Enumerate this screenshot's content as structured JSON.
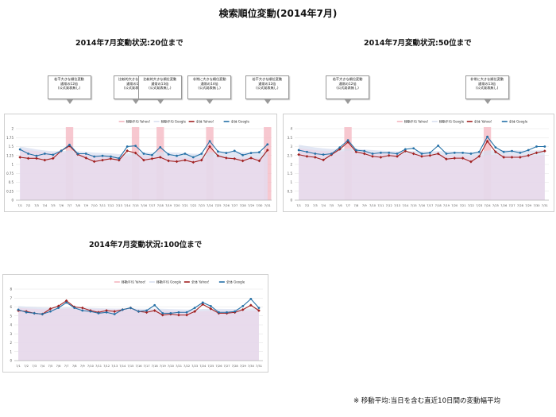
{
  "title": "検索順位変動(2014年7月)",
  "footnote": "※ 移動平均:当日を含む直近10日間の変動幅平均",
  "colors": {
    "google": "#2470a6",
    "yahoo": "#a02020",
    "ma_google_fill": "#d8dff0",
    "ma_yahoo_fill": "#ead7ea",
    "highlight": "#f4b6c0"
  },
  "legend_labels": [
    "移動平均 Yahoo!",
    "移動平均 Google",
    "全体 Yahoo!",
    "全体 Google"
  ],
  "chart_data": [
    {
      "type": "line",
      "title": "2014年7月変動状況:20位まで",
      "categories": [
        "7/1",
        "7/2",
        "7/3",
        "7/4",
        "7/5",
        "7/6",
        "7/7",
        "7/8",
        "7/9",
        "7/10",
        "7/11",
        "7/12",
        "7/13",
        "7/14",
        "7/15",
        "7/16",
        "7/17",
        "7/18",
        "7/19",
        "7/20",
        "7/21",
        "7/22",
        "7/23",
        "7/24",
        "7/25",
        "7/26",
        "7/27",
        "7/28",
        "7/29",
        "7/30",
        "7/31"
      ],
      "ylim": [
        0,
        2
      ],
      "yticks": [
        "0",
        "0.25",
        "0.5",
        "0.75",
        "1",
        "1.25",
        "1.5",
        "1.75",
        "2"
      ],
      "highlight_dates": [
        "7/7",
        "7/15",
        "7/18",
        "7/24",
        "7/31"
      ],
      "series": [
        {
          "name": "全体 Yahoo!",
          "values": [
            1.2,
            1.17,
            1.17,
            1.12,
            1.17,
            1.38,
            1.52,
            1.28,
            1.18,
            1.08,
            1.12,
            1.16,
            1.12,
            1.38,
            1.32,
            1.12,
            1.16,
            1.2,
            1.1,
            1.08,
            1.12,
            1.06,
            1.12,
            1.5,
            1.24,
            1.18,
            1.16,
            1.1,
            1.18,
            1.1,
            1.4
          ]
        },
        {
          "name": "全体 Google",
          "values": [
            1.42,
            1.3,
            1.24,
            1.3,
            1.27,
            1.38,
            1.55,
            1.3,
            1.3,
            1.22,
            1.24,
            1.22,
            1.17,
            1.5,
            1.52,
            1.3,
            1.26,
            1.48,
            1.28,
            1.24,
            1.3,
            1.2,
            1.3,
            1.65,
            1.36,
            1.32,
            1.38,
            1.26,
            1.32,
            1.34,
            1.56
          ]
        },
        {
          "name": "移動平均 Yahoo!",
          "values": [
            1.42,
            1.4,
            1.37,
            1.34,
            1.32,
            1.33,
            1.35,
            1.33,
            1.29,
            1.26,
            1.24,
            1.22,
            1.21,
            1.23,
            1.24,
            1.24,
            1.23,
            1.23,
            1.22,
            1.2,
            1.19,
            1.18,
            1.17,
            1.2,
            1.21,
            1.2,
            1.2,
            1.19,
            1.19,
            1.19,
            1.21
          ]
        },
        {
          "name": "移動平均 Google",
          "values": [
            1.5,
            1.46,
            1.42,
            1.39,
            1.37,
            1.37,
            1.39,
            1.37,
            1.35,
            1.33,
            1.32,
            1.31,
            1.29,
            1.31,
            1.33,
            1.34,
            1.33,
            1.35,
            1.34,
            1.33,
            1.32,
            1.3,
            1.3,
            1.34,
            1.35,
            1.35,
            1.36,
            1.34,
            1.34,
            1.34,
            1.36
          ]
        }
      ],
      "callouts": [
        {
          "date": "7/7",
          "lines": [
            "若干大きな順位変動",
            "通常の12倍",
            "(公式発表無し)"
          ]
        },
        {
          "date": "7/15",
          "lines": [
            "比較的大きな順位変動",
            "通常の13倍",
            "(公式発表無し)"
          ]
        },
        {
          "date": "7/18",
          "lines": [
            "比較的大きな順位変動",
            "通常の13倍",
            "(公式発表無し)"
          ]
        },
        {
          "date": "7/24",
          "lines": [
            "非常に大きな順位変動",
            "通常の14倍",
            "(公式発表無し)"
          ]
        },
        {
          "date": "7/31",
          "lines": [
            "若干大きな順位変動",
            "通常の12倍",
            "(公式発表無し)"
          ]
        }
      ]
    },
    {
      "type": "line",
      "title": "2014年7月変動状況:50位まで",
      "categories": [
        "7/1",
        "7/2",
        "7/3",
        "7/4",
        "7/5",
        "7/6",
        "7/7",
        "7/8",
        "7/9",
        "7/10",
        "7/11",
        "7/12",
        "7/13",
        "7/14",
        "7/15",
        "7/16",
        "7/17",
        "7/18",
        "7/19",
        "7/20",
        "7/21",
        "7/22",
        "7/23",
        "7/24",
        "7/25",
        "7/26",
        "7/27",
        "7/28",
        "7/29",
        "7/30",
        "7/31"
      ],
      "ylim": [
        0,
        4
      ],
      "yticks": [
        "0",
        "0.5",
        "1",
        "1.5",
        "2",
        "2.5",
        "3",
        "3.5",
        "4"
      ],
      "highlight_dates": [
        "7/7",
        "7/24"
      ],
      "series": [
        {
          "name": "全体 Yahoo!",
          "values": [
            2.55,
            2.45,
            2.4,
            2.25,
            2.55,
            2.85,
            3.25,
            2.7,
            2.6,
            2.45,
            2.4,
            2.5,
            2.45,
            2.75,
            2.6,
            2.45,
            2.5,
            2.6,
            2.3,
            2.35,
            2.35,
            2.15,
            2.45,
            3.3,
            2.7,
            2.4,
            2.4,
            2.4,
            2.5,
            2.65,
            2.75
          ]
        },
        {
          "name": "全体 Google",
          "values": [
            2.8,
            2.7,
            2.6,
            2.55,
            2.6,
            2.95,
            3.35,
            2.8,
            2.75,
            2.6,
            2.65,
            2.65,
            2.6,
            2.85,
            2.9,
            2.6,
            2.65,
            3.05,
            2.6,
            2.65,
            2.65,
            2.6,
            2.7,
            3.55,
            2.95,
            2.7,
            2.75,
            2.65,
            2.8,
            3.0,
            3.0
          ]
        },
        {
          "name": "移動平均 Yahoo!",
          "values": [
            2.9,
            2.85,
            2.8,
            2.75,
            2.72,
            2.72,
            2.76,
            2.74,
            2.7,
            2.66,
            2.62,
            2.6,
            2.58,
            2.6,
            2.6,
            2.57,
            2.55,
            2.55,
            2.52,
            2.5,
            2.48,
            2.46,
            2.46,
            2.52,
            2.54,
            2.53,
            2.52,
            2.5,
            2.5,
            2.5,
            2.52
          ]
        },
        {
          "name": "移動平均 Google",
          "values": [
            3.1,
            3.02,
            2.95,
            2.9,
            2.86,
            2.86,
            2.9,
            2.88,
            2.84,
            2.8,
            2.77,
            2.75,
            2.73,
            2.74,
            2.75,
            2.73,
            2.72,
            2.75,
            2.73,
            2.72,
            2.7,
            2.69,
            2.69,
            2.78,
            2.8,
            2.79,
            2.8,
            2.78,
            2.78,
            2.79,
            2.82
          ]
        }
      ],
      "callouts": [
        {
          "date": "7/7",
          "lines": [
            "若干大きな順位変動",
            "通常の12倍",
            "(公式発表無し)"
          ]
        },
        {
          "date": "7/24",
          "lines": [
            "非常に大きな順位変動",
            "通常の13倍",
            "(公式発表無し)"
          ]
        }
      ]
    },
    {
      "type": "line",
      "title": "2014年7月変動状況:100位まで",
      "categories": [
        "7/1",
        "7/2",
        "7/3",
        "7/4",
        "7/5",
        "7/6",
        "7/7",
        "7/8",
        "7/9",
        "7/10",
        "7/11",
        "7/12",
        "7/13",
        "7/14",
        "7/15",
        "7/16",
        "7/17",
        "7/18",
        "7/19",
        "7/20",
        "7/21",
        "7/22",
        "7/23",
        "7/24",
        "7/25",
        "7/26",
        "7/27",
        "7/28",
        "7/29",
        "7/30",
        "7/31"
      ],
      "ylim": [
        0,
        8
      ],
      "yticks": [
        "0",
        "1",
        "2",
        "3",
        "4",
        "5",
        "6",
        "7",
        "8"
      ],
      "highlight_dates": [],
      "series": [
        {
          "name": "全体 Yahoo!",
          "values": [
            5.6,
            5.5,
            5.3,
            5.2,
            5.8,
            6.1,
            6.7,
            6.0,
            5.9,
            5.6,
            5.4,
            5.6,
            5.5,
            5.7,
            5.9,
            5.5,
            5.4,
            5.6,
            5.1,
            5.2,
            5.1,
            5.1,
            5.5,
            6.3,
            5.8,
            5.3,
            5.3,
            5.4,
            5.7,
            6.2,
            5.6
          ]
        },
        {
          "name": "全体 Google",
          "values": [
            5.7,
            5.4,
            5.3,
            5.2,
            5.5,
            5.9,
            6.5,
            5.9,
            5.6,
            5.5,
            5.3,
            5.4,
            5.2,
            5.7,
            5.9,
            5.5,
            5.6,
            6.2,
            5.3,
            5.3,
            5.4,
            5.4,
            5.9,
            6.5,
            6.1,
            5.4,
            5.4,
            5.5,
            6.1,
            6.9,
            5.9
          ]
        },
        {
          "name": "移動平均 Yahoo!",
          "values": [
            5.9,
            5.85,
            5.8,
            5.75,
            5.75,
            5.77,
            5.82,
            5.82,
            5.8,
            5.78,
            5.76,
            5.74,
            5.72,
            5.71,
            5.7,
            5.68,
            5.65,
            5.63,
            5.6,
            5.55,
            5.52,
            5.5,
            5.5,
            5.55,
            5.57,
            5.56,
            5.55,
            5.55,
            5.56,
            5.6,
            5.6
          ]
        },
        {
          "name": "移動平均 Google",
          "values": [
            6.1,
            6.05,
            6.0,
            5.95,
            5.92,
            5.92,
            5.96,
            5.95,
            5.92,
            5.9,
            5.87,
            5.84,
            5.82,
            5.82,
            5.83,
            5.81,
            5.8,
            5.82,
            5.8,
            5.77,
            5.74,
            5.72,
            5.73,
            5.78,
            5.8,
            5.79,
            5.78,
            5.78,
            5.8,
            5.85,
            5.86
          ]
        }
      ],
      "callouts": []
    }
  ]
}
